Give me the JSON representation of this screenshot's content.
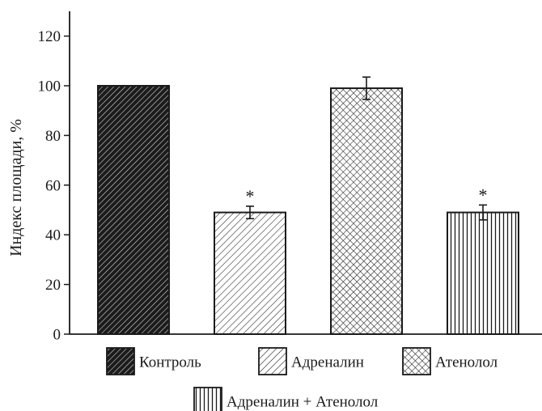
{
  "chart_data": {
    "type": "bar",
    "ylabel": "Индекс площади, %",
    "ylim": [
      0,
      130
    ],
    "yticks": [
      0,
      20,
      40,
      60,
      80,
      100,
      120
    ],
    "grid": false,
    "legend_position": "bottom",
    "series": [
      {
        "name": "Контроль",
        "value": 100,
        "error": 0,
        "significant": false,
        "pattern": "dense-diagonal",
        "marker": ""
      },
      {
        "name": "Адреналин",
        "value": 49,
        "error": 2.5,
        "significant": true,
        "pattern": "diagonal",
        "marker": "*"
      },
      {
        "name": "Атенолол",
        "value": 99,
        "error": 4.5,
        "significant": false,
        "pattern": "crosshatch",
        "marker": ""
      },
      {
        "name": "Адреналин + Атенолол",
        "value": 49,
        "error": 3,
        "significant": true,
        "pattern": "vertical",
        "marker": "*"
      }
    ]
  }
}
